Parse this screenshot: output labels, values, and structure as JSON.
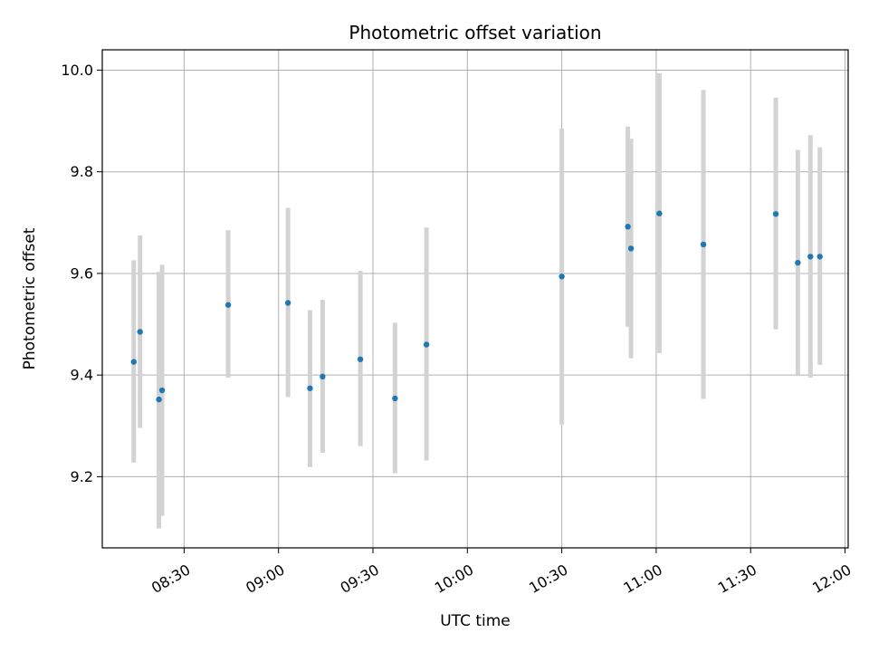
{
  "chart_data": {
    "type": "scatter",
    "title": "Photometric offset variation",
    "xlabel": "UTC time",
    "ylabel": "Photometric offset",
    "x_tick_labels": [
      "08:30",
      "09:00",
      "09:30",
      "10:00",
      "10:30",
      "11:00",
      "11:30",
      "12:00"
    ],
    "y_tick_labels": [
      "9.2",
      "9.4",
      "9.6",
      "9.8",
      "10.0"
    ],
    "x_ticks": [
      "08:30",
      "09:00",
      "09:30",
      "10:00",
      "10:30",
      "11:00",
      "11:30",
      "12:00"
    ],
    "y_ticks": [
      9.2,
      9.4,
      9.6,
      9.8,
      10.0
    ],
    "xlim": [
      "08:04",
      "12:01"
    ],
    "ylim": [
      9.06,
      10.04
    ],
    "grid": true,
    "marker_color": "#1f77b4",
    "errorbar_color": "#d3d3d3",
    "points": [
      {
        "time": "08:14",
        "y": 9.426,
        "ylow": 9.228,
        "yhigh": 9.626
      },
      {
        "time": "08:16",
        "y": 9.485,
        "ylow": 9.296,
        "yhigh": 9.675
      },
      {
        "time": "08:22",
        "y": 9.352,
        "ylow": 9.098,
        "yhigh": 9.603
      },
      {
        "time": "08:23",
        "y": 9.37,
        "ylow": 9.123,
        "yhigh": 9.617
      },
      {
        "time": "08:44",
        "y": 9.538,
        "ylow": 9.395,
        "yhigh": 9.685
      },
      {
        "time": "09:03",
        "y": 9.542,
        "ylow": 9.357,
        "yhigh": 9.729
      },
      {
        "time": "09:10",
        "y": 9.374,
        "ylow": 9.219,
        "yhigh": 9.528
      },
      {
        "time": "09:14",
        "y": 9.397,
        "ylow": 9.247,
        "yhigh": 9.548
      },
      {
        "time": "09:26",
        "y": 9.431,
        "ylow": 9.26,
        "yhigh": 9.605
      },
      {
        "time": "09:37",
        "y": 9.354,
        "ylow": 9.207,
        "yhigh": 9.503
      },
      {
        "time": "09:47",
        "y": 9.46,
        "ylow": 9.232,
        "yhigh": 9.69
      },
      {
        "time": "10:30",
        "y": 9.594,
        "ylow": 9.303,
        "yhigh": 9.885
      },
      {
        "time": "10:51",
        "y": 9.692,
        "ylow": 9.495,
        "yhigh": 9.889
      },
      {
        "time": "10:52",
        "y": 9.649,
        "ylow": 9.433,
        "yhigh": 9.865
      },
      {
        "time": "11:01",
        "y": 9.718,
        "ylow": 9.443,
        "yhigh": 9.994
      },
      {
        "time": "11:15",
        "y": 9.657,
        "ylow": 9.353,
        "yhigh": 9.961
      },
      {
        "time": "11:38",
        "y": 9.717,
        "ylow": 9.49,
        "yhigh": 9.946
      },
      {
        "time": "11:45",
        "y": 9.621,
        "ylow": 9.398,
        "yhigh": 9.843
      },
      {
        "time": "11:49",
        "y": 9.633,
        "ylow": 9.395,
        "yhigh": 9.872
      },
      {
        "time": "11:52",
        "y": 9.633,
        "ylow": 9.42,
        "yhigh": 9.848
      }
    ]
  }
}
